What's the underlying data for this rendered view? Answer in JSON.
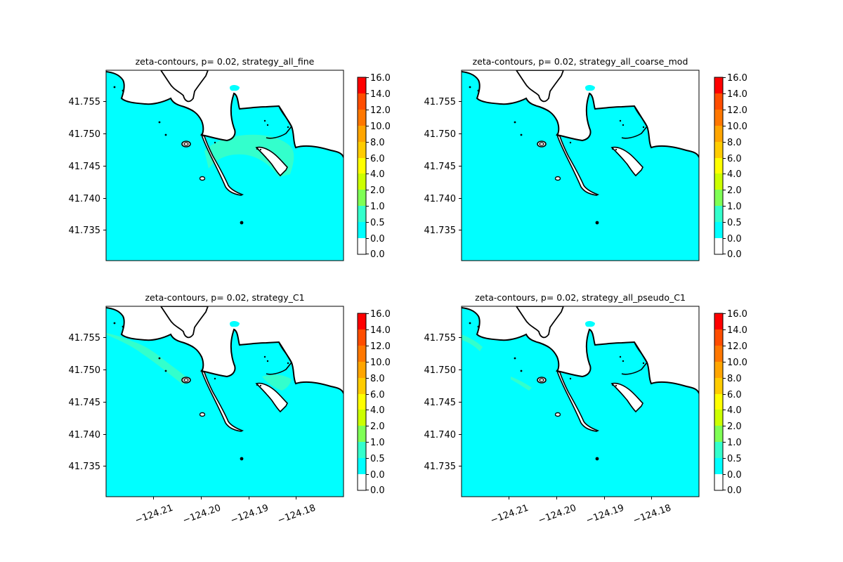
{
  "chart_data": [
    {
      "type": "contour_map",
      "title": "zeta-contours, p= 0.02, strategy_all_fine",
      "yticks": [
        "41.755",
        "41.750",
        "41.745",
        "41.740",
        "41.735"
      ],
      "xticks": [],
      "colorbar_levels": [
        "16.0",
        "14.0",
        "12.0",
        "10.0",
        "8.0",
        "6.0",
        "4.0",
        "2.0",
        "1.0",
        "0.5",
        "0.0",
        "0.0"
      ],
      "fill_levels": [
        "1.0",
        "0.5"
      ]
    },
    {
      "type": "contour_map",
      "title": "zeta-contours, p= 0.02, strategy_all_coarse_mod",
      "yticks": [
        "41.755",
        "41.750",
        "41.745",
        "41.740",
        "41.735"
      ],
      "xticks": [],
      "colorbar_levels": [
        "16.0",
        "14.0",
        "12.0",
        "10.0",
        "8.0",
        "6.0",
        "4.0",
        "2.0",
        "1.0",
        "0.5",
        "0.0",
        "0.0"
      ],
      "fill_levels": [
        "0.5"
      ]
    },
    {
      "type": "contour_map",
      "title": "zeta-contours, p= 0.02, strategy_C1",
      "yticks": [
        "41.755",
        "41.750",
        "41.745",
        "41.740",
        "41.735"
      ],
      "xticks": [
        "−124.21",
        "−124.20",
        "−124.19",
        "−124.18"
      ],
      "colorbar_levels": [
        "16.0",
        "14.0",
        "12.0",
        "10.0",
        "8.0",
        "6.0",
        "4.0",
        "2.0",
        "1.0",
        "0.5",
        "0.0",
        "0.0"
      ],
      "fill_levels": [
        "1.0",
        "0.5"
      ]
    },
    {
      "type": "contour_map",
      "title": "zeta-contours, p= 0.02, strategy_all_pseudo_C1",
      "yticks": [
        "41.755",
        "41.750",
        "41.745",
        "41.740",
        "41.735"
      ],
      "xticks": [
        "−124.21",
        "−124.20",
        "−124.19",
        "−124.18"
      ],
      "colorbar_levels": [
        "16.0",
        "14.0",
        "12.0",
        "10.0",
        "8.0",
        "6.0",
        "4.0",
        "2.0",
        "1.0",
        "0.5",
        "0.0",
        "0.0"
      ],
      "fill_levels": [
        "1.0",
        "0.5"
      ]
    }
  ],
  "colors": {
    "colorbar_bands": [
      "#ffffff",
      "#00ffff",
      "#33ffcc",
      "#7fff55",
      "#ccff00",
      "#ffff00",
      "#ffcc00",
      "#ffa500",
      "#ff7700",
      "#ff4d00",
      "#ff0000"
    ],
    "water_low": "#00ffff",
    "water_mid": "#33ffcc",
    "land": "#ffffff",
    "coastline": "#000000"
  }
}
